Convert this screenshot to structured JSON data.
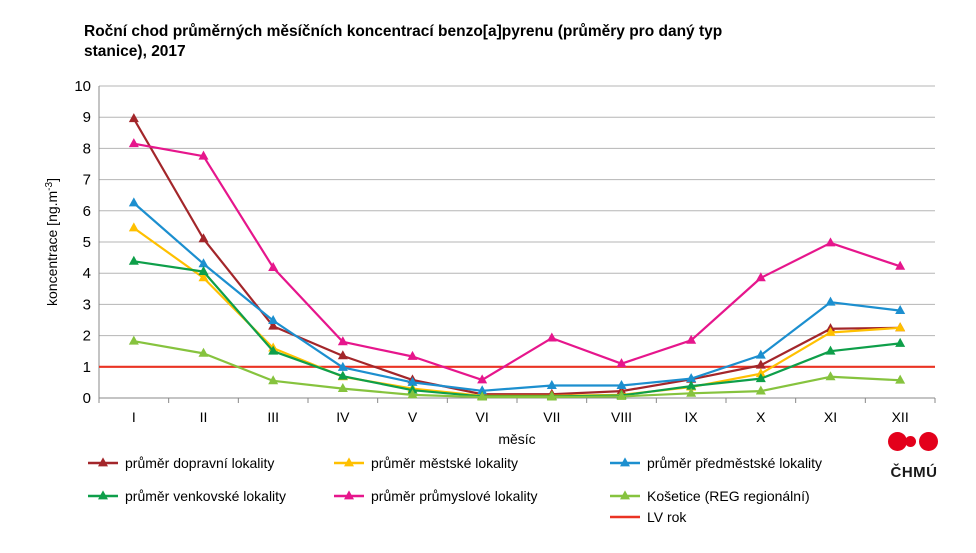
{
  "chart_data": {
    "type": "line",
    "title_line1": "Roční chod průměrných měsíčních koncentrací benzo[a]pyrenu (průměry pro daný typ",
    "title_line2": "stanice), 2017",
    "xlabel": "měsíc",
    "ylabel": "koncentrace [ng.m-3]",
    "ylim": [
      0,
      10
    ],
    "yticks": [
      "0",
      "1",
      "2",
      "3",
      "4",
      "5",
      "6",
      "7",
      "8",
      "9",
      "10"
    ],
    "categories": [
      "I",
      "II",
      "III",
      "IV",
      "V",
      "VI",
      "VII",
      "VIII",
      "IX",
      "X",
      "XI",
      "XII"
    ],
    "grid": true,
    "legend_position": "bottom",
    "series": [
      {
        "name": "průměr dopravní lokality",
        "color": "#a3262a",
        "values": [
          8.95,
          5.1,
          2.3,
          1.35,
          0.58,
          0.12,
          0.12,
          0.22,
          0.6,
          1.05,
          2.22,
          2.25
        ]
      },
      {
        "name": "průměr městské lokality",
        "color": "#ffc000",
        "values": [
          5.45,
          3.85,
          1.6,
          0.68,
          0.3,
          0.07,
          0.07,
          0.1,
          0.35,
          0.78,
          2.1,
          2.25
        ]
      },
      {
        "name": "průměr předměstské lokality",
        "color": "#1c8fcf",
        "values": [
          6.25,
          4.3,
          2.48,
          0.98,
          0.5,
          0.23,
          0.4,
          0.4,
          0.62,
          1.37,
          3.07,
          2.8
        ]
      },
      {
        "name": "průměr venkovské lokality",
        "color": "#0e9f4a",
        "values": [
          4.38,
          4.05,
          1.5,
          0.7,
          0.25,
          0.05,
          0.05,
          0.08,
          0.38,
          0.62,
          1.5,
          1.75
        ]
      },
      {
        "name": "průměr průmyslové lokality",
        "color": "#e6168c",
        "values": [
          8.15,
          7.75,
          4.18,
          1.8,
          1.33,
          0.58,
          1.92,
          1.1,
          1.85,
          3.85,
          4.97,
          4.22
        ]
      },
      {
        "name": "Košetice (REG regionální)",
        "color": "#86c33e",
        "values": [
          1.82,
          1.43,
          0.55,
          0.3,
          0.1,
          0.03,
          0.03,
          0.05,
          0.15,
          0.22,
          0.68,
          0.57
        ]
      }
    ],
    "reference_line": {
      "name": "LV rok",
      "value": 1,
      "color": "#ea3323"
    },
    "legend_order": [
      {
        "label": "průměr dopravní lokality",
        "color": "#a3262a"
      },
      {
        "label": "průměr městské lokality",
        "color": "#ffc000"
      },
      {
        "label": "průměr předměstské lokality",
        "color": "#1c8fcf"
      },
      {
        "label": "průměr venkovské lokality",
        "color": "#0e9f4a"
      },
      {
        "label": "průměr průmyslové lokality",
        "color": "#e6168c"
      },
      {
        "label": "Košetice (REG regionální)",
        "color": "#86c33e"
      },
      {
        "label": "LV rok",
        "color": "#ea3323",
        "plain_line": true
      }
    ]
  },
  "logo": {
    "text": "ČHMÚ"
  }
}
